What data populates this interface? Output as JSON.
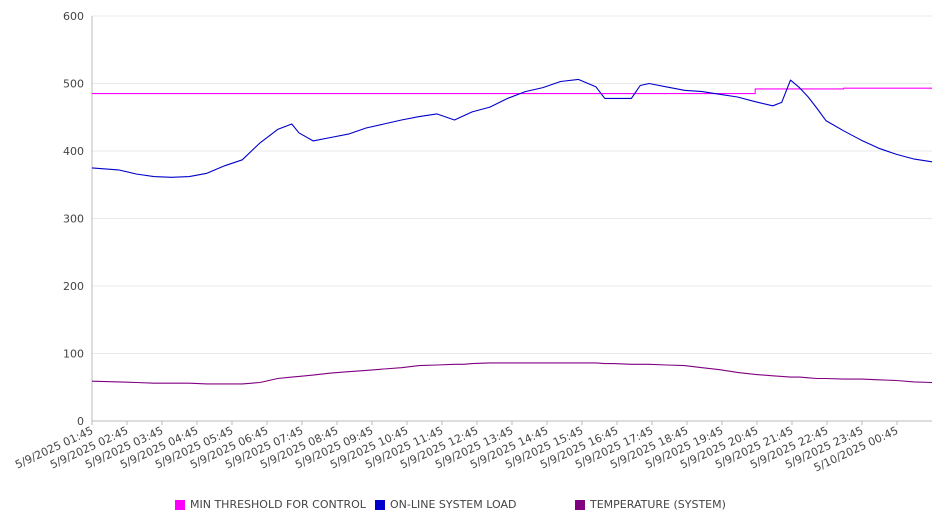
{
  "chart_data": {
    "type": "line",
    "title": "",
    "xlabel": "",
    "ylabel": "",
    "ylim": [
      0,
      600
    ],
    "y_ticks": [
      "0",
      "100",
      "200",
      "300",
      "400",
      "500",
      "600"
    ],
    "x_tick_labels": [
      "5/9/2025 01:45",
      "5/9/2025 02:45",
      "5/9/2025 03:45",
      "5/9/2025 04:45",
      "5/9/2025 05:45",
      "5/9/2025 06:45",
      "5/9/2025 07:45",
      "5/9/2025 08:45",
      "5/9/2025 09:45",
      "5/9/2025 10:45",
      "5/9/2025 11:45",
      "5/9/2025 12:45",
      "5/9/2025 13:45",
      "5/9/2025 14:45",
      "5/9/2025 15:45",
      "5/9/2025 16:45",
      "5/9/2025 17:45",
      "5/9/2025 18:45",
      "5/9/2025 19:45",
      "5/9/2025 20:45",
      "5/9/2025 21:45",
      "5/9/2025 22:45",
      "5/9/2025 23:45",
      "5/10/2025 00:45"
    ],
    "x_hours": [
      1.75,
      2.5,
      3.0,
      3.5,
      4.0,
      4.5,
      5.0,
      5.5,
      6.0,
      6.5,
      7.0,
      7.4,
      7.6,
      8.0,
      8.5,
      9.0,
      9.5,
      10.0,
      10.5,
      11.0,
      11.5,
      12.0,
      12.25,
      12.5,
      13.0,
      13.5,
      14.0,
      14.5,
      15.0,
      15.5,
      16.0,
      16.25,
      16.5,
      17.0,
      17.25,
      17.5,
      18.0,
      18.5,
      19.0,
      19.5,
      20.0,
      20.5,
      21.0,
      21.25,
      21.5,
      21.75,
      22.0,
      22.25,
      22.5,
      23.0,
      23.5,
      24.0,
      24.5,
      25.0,
      25.5
    ],
    "series": [
      {
        "name": "MIN THRESHOLD FOR CONTROL",
        "color": "#ff00ff",
        "values": [
          485,
          485,
          485,
          485,
          485,
          485,
          485,
          485,
          485,
          485,
          485,
          485,
          485,
          485,
          485,
          485,
          485,
          485,
          485,
          485,
          485,
          485,
          485,
          485,
          485,
          485,
          485,
          485,
          485,
          485,
          485,
          485,
          485,
          485,
          485,
          485,
          485,
          485,
          485,
          485,
          485,
          492,
          492,
          492,
          492,
          492,
          492,
          492,
          492,
          493,
          493,
          493,
          493,
          493,
          493
        ]
      },
      {
        "name": "ON-LINE SYSTEM LOAD",
        "color": "#0000cc",
        "values": [
          375,
          372,
          366,
          362,
          361,
          362,
          367,
          378,
          387,
          412,
          432,
          440,
          427,
          415,
          420,
          425,
          434,
          440,
          446,
          451,
          455,
          446,
          452,
          458,
          465,
          478,
          488,
          494,
          503,
          506,
          495,
          478,
          478,
          478,
          497,
          500,
          495,
          490,
          488,
          484,
          480,
          473,
          467,
          472,
          505,
          494,
          480,
          463,
          445,
          430,
          416,
          404,
          395,
          388,
          384
        ]
      },
      {
        "name": "TEMPERATURE (SYSTEM)",
        "color": "#800080",
        "values": [
          59,
          58,
          57,
          56,
          56,
          56,
          55,
          55,
          55,
          57,
          63,
          65,
          66,
          68,
          71,
          73,
          75,
          77,
          79,
          82,
          83,
          84,
          84,
          85,
          86,
          86,
          86,
          86,
          86,
          86,
          86,
          85,
          85,
          84,
          84,
          84,
          83,
          82,
          79,
          76,
          72,
          69,
          67,
          66,
          65,
          65,
          64,
          63,
          63,
          62,
          62,
          61,
          60,
          58,
          57
        ]
      }
    ],
    "grid": true,
    "legend_position": "bottom"
  }
}
